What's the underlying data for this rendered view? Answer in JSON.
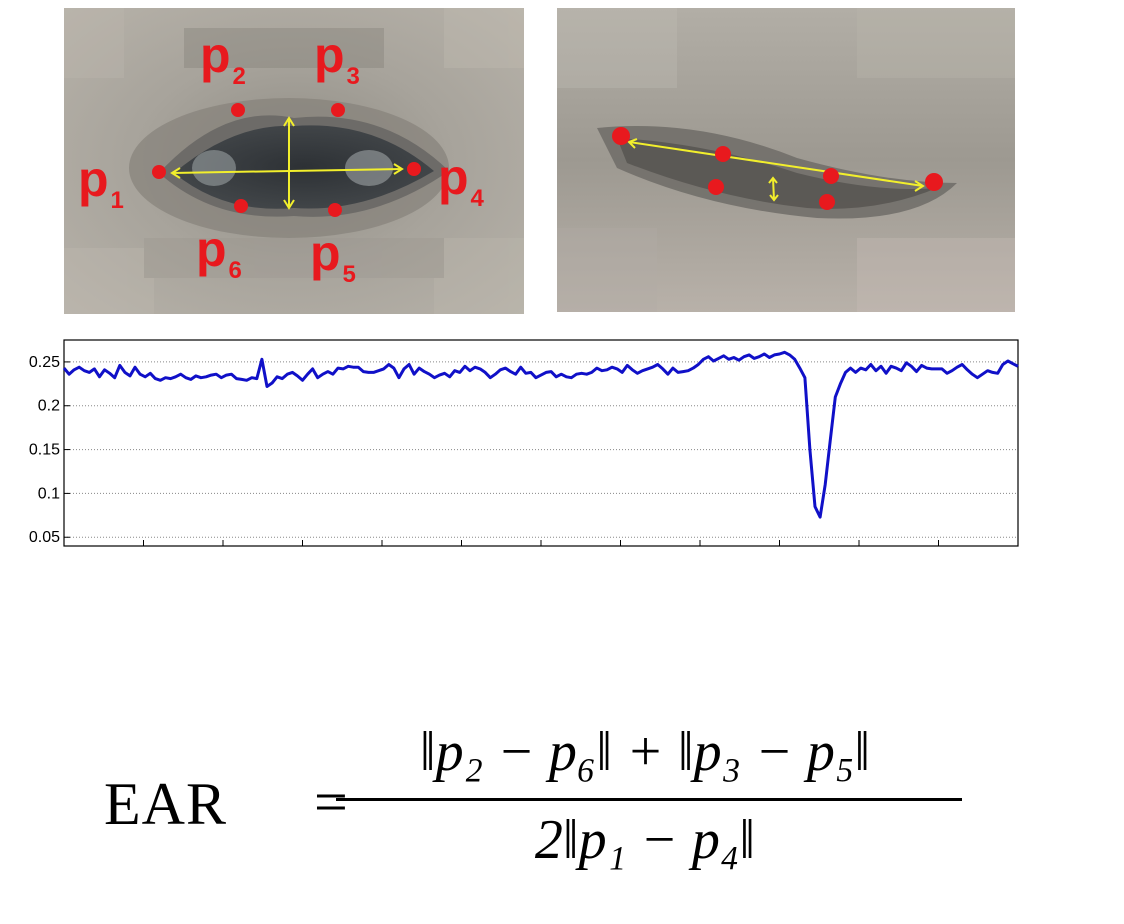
{
  "landmarks": {
    "p1": {
      "base": "p",
      "sub": "1"
    },
    "p2": {
      "base": "p",
      "sub": "2"
    },
    "p3": {
      "base": "p",
      "sub": "3"
    },
    "p4": {
      "base": "p",
      "sub": "4"
    },
    "p5": {
      "base": "p",
      "sub": "5"
    },
    "p6": {
      "base": "p",
      "sub": "6"
    }
  },
  "colors": {
    "landmark": "#e8191e",
    "arrow": "#f2ef2c",
    "series": "#1010c8"
  },
  "chart_data": {
    "type": "line",
    "title": "",
    "xlabel": "",
    "ylabel": "",
    "ylim": [
      0.04,
      0.275
    ],
    "yticks": [
      "0.25",
      "0.2",
      "0.15",
      "0.1",
      "0.05"
    ],
    "ytick_values": [
      0.25,
      0.2,
      0.15,
      0.1,
      0.05
    ],
    "xtick_count": 12,
    "grid": true,
    "series": [
      {
        "values": [
          0.243,
          0.236,
          0.241,
          0.244,
          0.24,
          0.238,
          0.242,
          0.233,
          0.241,
          0.237,
          0.232,
          0.246,
          0.238,
          0.234,
          0.244,
          0.236,
          0.233,
          0.237,
          0.231,
          0.229,
          0.232,
          0.231,
          0.233,
          0.236,
          0.232,
          0.23,
          0.234,
          0.232,
          0.233,
          0.235,
          0.236,
          0.232,
          0.235,
          0.236,
          0.231,
          0.23,
          0.229,
          0.232,
          0.231,
          0.253,
          0.222,
          0.226,
          0.233,
          0.231,
          0.236,
          0.238,
          0.234,
          0.229,
          0.236,
          0.242,
          0.232,
          0.236,
          0.239,
          0.236,
          0.243,
          0.242,
          0.245,
          0.244,
          0.244,
          0.239,
          0.238,
          0.238,
          0.24,
          0.242,
          0.247,
          0.243,
          0.232,
          0.242,
          0.247,
          0.236,
          0.243,
          0.239,
          0.236,
          0.232,
          0.235,
          0.237,
          0.233,
          0.24,
          0.238,
          0.245,
          0.24,
          0.244,
          0.242,
          0.238,
          0.232,
          0.236,
          0.241,
          0.243,
          0.239,
          0.236,
          0.244,
          0.237,
          0.238,
          0.232,
          0.235,
          0.238,
          0.239,
          0.233,
          0.236,
          0.233,
          0.232,
          0.236,
          0.237,
          0.236,
          0.238,
          0.243,
          0.24,
          0.241,
          0.244,
          0.242,
          0.238,
          0.246,
          0.241,
          0.237,
          0.24,
          0.242,
          0.244,
          0.247,
          0.242,
          0.236,
          0.243,
          0.238,
          0.239,
          0.24,
          0.243,
          0.247,
          0.253,
          0.256,
          0.251,
          0.254,
          0.257,
          0.253,
          0.255,
          0.252,
          0.256,
          0.258,
          0.254,
          0.256,
          0.259,
          0.255,
          0.258,
          0.259,
          0.261,
          0.258,
          0.253,
          0.243,
          0.232,
          0.15,
          0.085,
          0.073,
          0.11,
          0.16,
          0.21,
          0.225,
          0.238,
          0.243,
          0.238,
          0.243,
          0.241,
          0.247,
          0.24,
          0.245,
          0.237,
          0.245,
          0.243,
          0.24,
          0.249,
          0.245,
          0.239,
          0.246,
          0.243,
          0.242,
          0.242,
          0.242,
          0.237,
          0.24,
          0.244,
          0.247,
          0.241,
          0.236,
          0.232,
          0.236,
          0.24,
          0.238,
          0.237,
          0.247,
          0.251,
          0.248,
          0.245
        ]
      }
    ]
  },
  "formula": {
    "lhs": "EAR",
    "equals": "=",
    "numerator": "‖p₂ − p₆‖ + ‖p₃ − p₅‖",
    "denominator": "2‖p₁ − p₄‖"
  }
}
